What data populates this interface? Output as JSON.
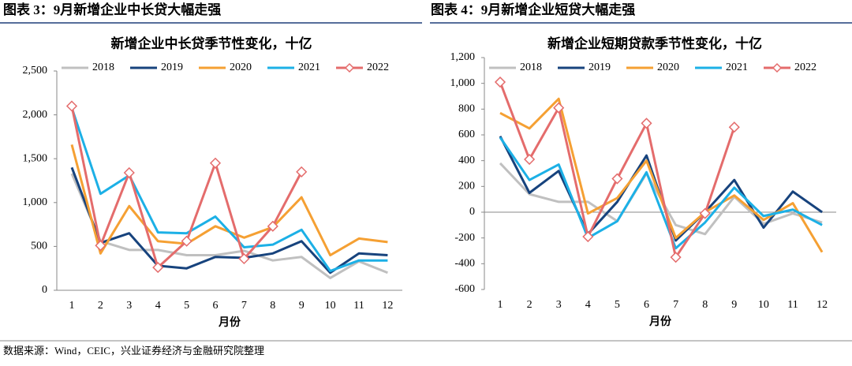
{
  "captions": [
    "图表 3：9月新增企业中长贷大幅走强",
    "图表 4：9月新增企业短贷大幅走强"
  ],
  "source": "数据来源：Wind，CEIC，兴业证券经济与金融研究院整理",
  "chart_data": [
    {
      "type": "line",
      "title": "新增企业中长贷季节性变化，十亿",
      "xlabel": "月份",
      "categories": [
        "1",
        "2",
        "3",
        "4",
        "5",
        "6",
        "7",
        "8",
        "9",
        "10",
        "11",
        "12"
      ],
      "ylim": [
        0,
        2500
      ],
      "yticks": [
        0,
        500,
        {
          "value": 1000,
          "label": "1,000"
        },
        {
          "value": 1500,
          "label": "1,500"
        },
        {
          "value": 2000,
          "label": "2,000"
        },
        {
          "value": 2500,
          "label": "2,500"
        }
      ],
      "series": [
        {
          "name": "2018",
          "color": "#c0c0c0",
          "values": [
            1330,
            560,
            460,
            460,
            400,
            400,
            450,
            340,
            380,
            140,
            330,
            200
          ]
        },
        {
          "name": "2019",
          "color": "#17437d",
          "values": [
            1400,
            540,
            650,
            280,
            250,
            380,
            370,
            420,
            560,
            200,
            420,
            400
          ]
        },
        {
          "name": "2020",
          "color": "#f5a033",
          "values": [
            1660,
            420,
            960,
            560,
            530,
            730,
            600,
            720,
            1060,
            400,
            590,
            550
          ]
        },
        {
          "name": "2021",
          "color": "#1cb0e6",
          "values": [
            2080,
            1100,
            1310,
            660,
            650,
            840,
            490,
            520,
            690,
            220,
            340,
            340
          ]
        },
        {
          "name": "2022",
          "color": "#e46c6c",
          "marker": "diamond",
          "values": [
            2100,
            510,
            1340,
            260,
            560,
            1450,
            360,
            730,
            1350,
            null,
            null,
            null
          ]
        }
      ]
    },
    {
      "type": "line",
      "title": "新增企业短期贷款季节性变化，十亿",
      "xlabel": "月份",
      "categories": [
        "1",
        "2",
        "3",
        "4",
        "5",
        "6",
        "7",
        "8",
        "9",
        "10",
        "11",
        "12"
      ],
      "ylim": [
        -600,
        1200
      ],
      "yticks": [
        -600,
        -400,
        -200,
        0,
        200,
        400,
        600,
        800,
        {
          "value": 1000,
          "label": "1,000"
        },
        {
          "value": 1200,
          "label": "1,200"
        }
      ],
      "series": [
        {
          "name": "2018",
          "color": "#c0c0c0",
          "values": [
            380,
            140,
            80,
            80,
            -70,
            300,
            -100,
            -170,
            120,
            -90,
            -10,
            -80
          ]
        },
        {
          "name": "2019",
          "color": "#17437d",
          "values": [
            590,
            150,
            320,
            -170,
            80,
            440,
            -220,
            0,
            250,
            -120,
            160,
            0
          ]
        },
        {
          "name": "2020",
          "color": "#f5a033",
          "values": [
            770,
            650,
            880,
            -10,
            110,
            400,
            -200,
            0,
            130,
            -60,
            70,
            -310
          ]
        },
        {
          "name": "2021",
          "color": "#1cb0e6",
          "values": [
            580,
            250,
            370,
            -200,
            -70,
            310,
            -280,
            -80,
            190,
            -30,
            20,
            -100
          ]
        },
        {
          "name": "2022",
          "color": "#e46c6c",
          "marker": "diamond",
          "values": [
            1010,
            410,
            810,
            -190,
            260,
            690,
            -350,
            -10,
            660,
            null,
            null,
            null
          ]
        }
      ]
    }
  ]
}
